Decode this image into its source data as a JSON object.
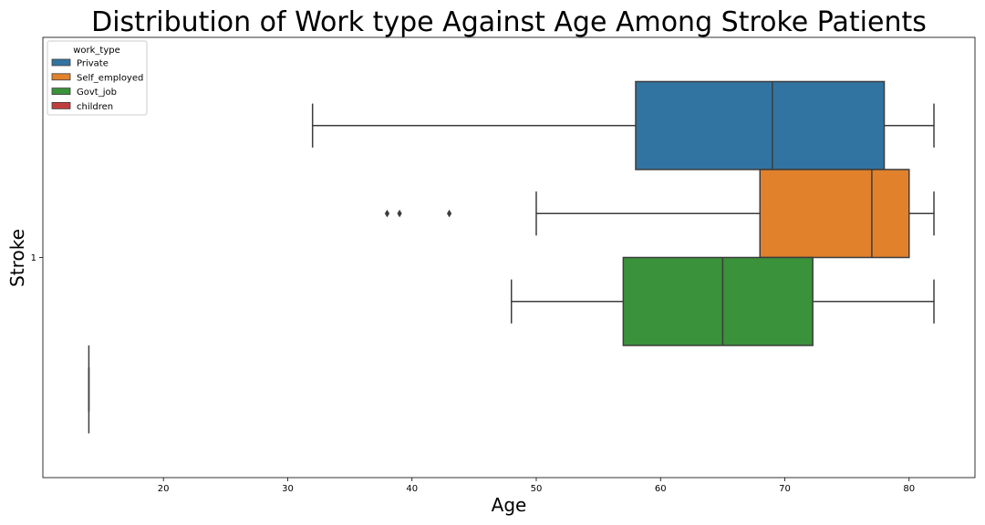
{
  "chart_data": {
    "type": "boxplot",
    "orientation": "horizontal",
    "title": "Distribution of Work type Against Age Among Stroke Patients",
    "xlabel": "Age",
    "ylabel": "Stroke",
    "xlim": [
      10.3,
      85.3
    ],
    "x_ticks": [
      20,
      30,
      40,
      50,
      60,
      70,
      80
    ],
    "y_categories": [
      "1"
    ],
    "legend": {
      "title": "work_type",
      "position": "upper-left",
      "entries": [
        "Private",
        "Self_employed",
        "Govt_job",
        "children"
      ]
    },
    "series": [
      {
        "name": "Private",
        "color": "#3274a1",
        "whisker_low": 32,
        "q1": 58,
        "median": 69,
        "q3": 78,
        "whisker_high": 82,
        "outliers": []
      },
      {
        "name": "Self_employed",
        "color": "#e1812c",
        "whisker_low": 50,
        "q1": 68,
        "median": 77,
        "q3": 80,
        "whisker_high": 82,
        "outliers": [
          38,
          39,
          43
        ]
      },
      {
        "name": "Govt_job",
        "color": "#3a923a",
        "whisker_low": 48,
        "q1": 57,
        "median": 65,
        "q3": 72.25,
        "whisker_high": 82,
        "outliers": []
      },
      {
        "name": "children",
        "color": "#c03d3e",
        "whisker_low": 14,
        "q1": 14,
        "median": 14,
        "q3": 14,
        "whisker_high": 14,
        "outliers": []
      }
    ]
  }
}
